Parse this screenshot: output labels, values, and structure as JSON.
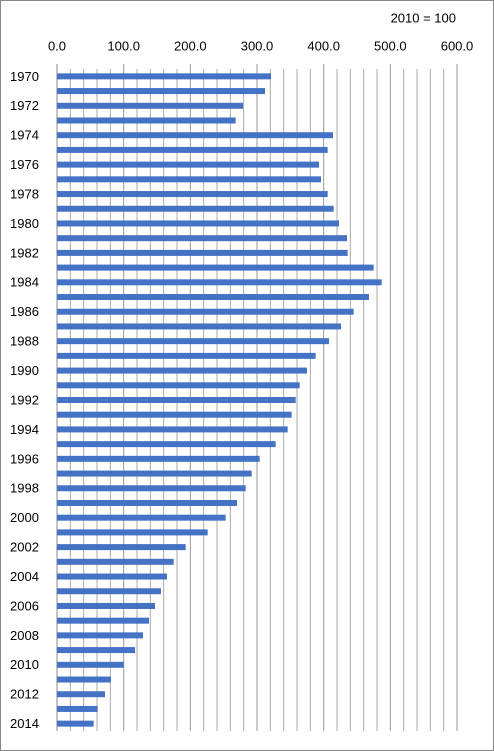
{
  "chart_data": {
    "type": "barh",
    "annotation": "2010 = 100",
    "categories": [
      "1970",
      null,
      "1972",
      null,
      "1974",
      null,
      "1976",
      null,
      "1978",
      null,
      "1980",
      null,
      "1982",
      null,
      "1984",
      null,
      "1986",
      null,
      "1988",
      null,
      "1990",
      null,
      "1992",
      null,
      "1994",
      null,
      "1996",
      null,
      "1998",
      null,
      "2000",
      null,
      "2002",
      null,
      "2004",
      null,
      "2006",
      null,
      "2008",
      null,
      "2010",
      null,
      "2012",
      null,
      "2014"
    ],
    "values": [
      321,
      312,
      279,
      268,
      414,
      406,
      393,
      396,
      406,
      415,
      423,
      435,
      436,
      475,
      487,
      468,
      445,
      426,
      408,
      388,
      375,
      364,
      358,
      352,
      346,
      328,
      304,
      292,
      283,
      270,
      253,
      226,
      193,
      175,
      165,
      156,
      147,
      138,
      129,
      117,
      100,
      81,
      72,
      61,
      55
    ],
    "color": "#4472c4",
    "xlim": [
      0,
      600
    ],
    "xticks": [
      {
        "value": 0,
        "label": "0.0"
      },
      {
        "value": 100,
        "label": "100.0"
      },
      {
        "value": 200,
        "label": "200.0"
      },
      {
        "value": 300,
        "label": "300.0"
      },
      {
        "value": 400,
        "label": "400.0"
      },
      {
        "value": 500,
        "label": "500.0"
      },
      {
        "value": 600,
        "label": "600.0"
      }
    ],
    "minor_grid": [
      20,
      40,
      60,
      80,
      120,
      140,
      160,
      180,
      220,
      240,
      260,
      280,
      320,
      340,
      360,
      380,
      420,
      440,
      460,
      480,
      520,
      540,
      560,
      580
    ],
    "grid": true
  }
}
